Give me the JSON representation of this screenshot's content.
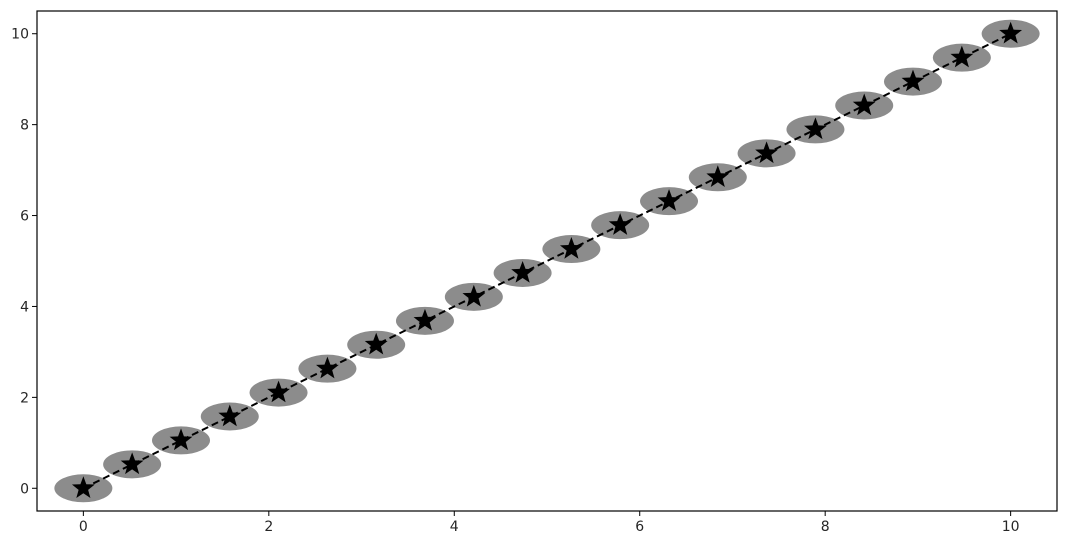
{
  "chart_data": {
    "type": "line",
    "title": "",
    "xlabel": "",
    "ylabel": "",
    "xlim": [
      -0.5,
      10.5
    ],
    "ylim": [
      -0.5,
      10.5
    ],
    "grid": false,
    "x_ticks": [
      0,
      2,
      4,
      6,
      8,
      10
    ],
    "y_ticks": [
      0,
      2,
      4,
      6,
      8,
      10
    ],
    "x_tick_labels": [
      "0",
      "2",
      "4",
      "6",
      "8",
      "10"
    ],
    "y_tick_labels": [
      "0",
      "2",
      "4",
      "6",
      "8",
      "10"
    ],
    "series": [
      {
        "line_style": "dashed",
        "line_color": "#000000",
        "marker": "star",
        "marker_color": "#000000",
        "marker_background": "ellipse",
        "marker_background_color": "#8c8c8c",
        "x": [
          0,
          0.526,
          1.053,
          1.579,
          2.105,
          2.632,
          3.158,
          3.684,
          4.211,
          4.737,
          5.263,
          5.789,
          6.316,
          6.842,
          7.368,
          7.895,
          8.421,
          8.947,
          9.474,
          10
        ],
        "y": [
          0,
          0.526,
          1.053,
          1.579,
          2.105,
          2.632,
          3.158,
          3.684,
          4.211,
          4.737,
          5.263,
          5.789,
          6.316,
          6.842,
          7.368,
          7.895,
          8.421,
          8.947,
          9.474,
          10
        ]
      }
    ]
  }
}
